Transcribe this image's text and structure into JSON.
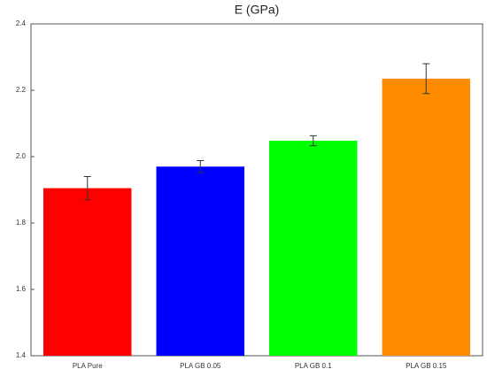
{
  "chart_data": {
    "type": "bar",
    "title": "E (GPa)",
    "categories": [
      "PLA Pure",
      "PLA GB 0.05",
      "PLA GB 0.1",
      "PLA GB 0.15"
    ],
    "values": [
      1.905,
      1.97,
      2.048,
      2.235
    ],
    "errors": [
      0.035,
      0.018,
      0.015,
      0.045
    ],
    "colors": [
      "#ff0000",
      "#0000ff",
      "#00ff00",
      "#ff8c00"
    ],
    "ylim": [
      1.4,
      2.4
    ],
    "yticks": [
      1.4,
      1.6,
      1.8,
      {
        "value": 2,
        "label": "2.0"
      },
      2.2,
      2.4
    ],
    "grid": false
  }
}
